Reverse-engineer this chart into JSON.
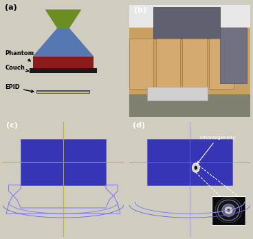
{
  "panel_labels": [
    "(a)",
    "(b)",
    "(c)",
    "(d)"
  ],
  "panel_a": {
    "bg_color": "#f0ece0",
    "linac_head_color": "#6b8e23",
    "beam_color": "#4169b0",
    "phantom_color": "#8b1a1a",
    "couch_color": "#1a1a1a",
    "epid_color": "#c8c860",
    "epid_border_color": "#4a4a8a",
    "labels": [
      "Phantom",
      "Couch",
      "EPID"
    ],
    "label_color": "#000000"
  },
  "panel_c": {
    "bg_color": "#000000",
    "phantom_color": "#4040c0",
    "couch_color": "#2020a0",
    "crosshair_color": "#c8b400",
    "couch_outline_color": "#8080ff"
  },
  "panel_d": {
    "bg_color": "#000000",
    "phantom_color": "#4040c0",
    "inhomogeneity_color": "#c0c0c0",
    "annotation_color": "#ffffff",
    "inset_bg": "#000000",
    "crosshair_color": "#8080ff"
  }
}
